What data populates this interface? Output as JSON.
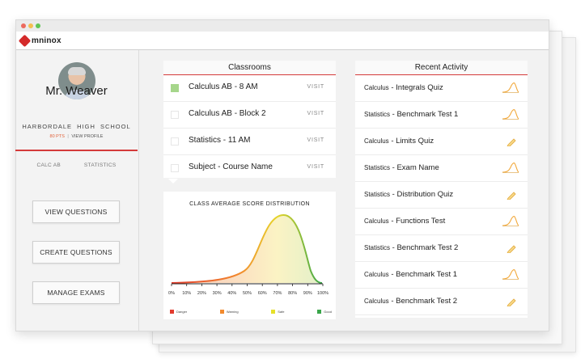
{
  "app": {
    "logo_text": "mninox"
  },
  "sidebar": {
    "teacher_name": "Mr. Weaver",
    "school": "HARBORDALE HIGH SCHOOL",
    "points": "80 PTS",
    "separator": "|",
    "view_profile": "VIEW PROFILE",
    "tabs": [
      "CALC AB",
      "STATISTICS"
    ],
    "buttons": {
      "view_questions": "VIEW QUESTIONS",
      "create_questions": "CREATE QUESTIONS",
      "manage_exams": "MANAGE EXAMS"
    }
  },
  "classrooms": {
    "title": "Classrooms",
    "visit_label": "VISIT",
    "items": [
      {
        "name": "Calculus AB - 8 AM",
        "active": true
      },
      {
        "name": "Calculus AB - Block 2",
        "active": false
      },
      {
        "name": "Statistics - 11 AM",
        "active": false
      },
      {
        "name": "Subject - Course Name",
        "active": false
      }
    ]
  },
  "distribution": {
    "title": "CLASS AVERAGE SCORE DISTRIBUTION",
    "ticks": [
      "0%",
      "10%",
      "20%",
      "30%",
      "40%",
      "50%",
      "60%",
      "70%",
      "80%",
      "90%",
      "100%"
    ],
    "legend": [
      {
        "label": "Danger",
        "color": "#e23b2e"
      },
      {
        "label": "Warning",
        "color": "#f28a2e"
      },
      {
        "label": "Safe",
        "color": "#e6e02a"
      },
      {
        "label": "Good",
        "color": "#3aa64a"
      }
    ]
  },
  "activity": {
    "title": "Recent Activity",
    "items": [
      {
        "subject": "Calculus",
        "name": "Integrals Quiz",
        "icon": "bell-curve-icon"
      },
      {
        "subject": "Statistics",
        "name": "Benchmark Test 1",
        "icon": "bell-curve-icon"
      },
      {
        "subject": "Calculus",
        "name": "Limits Quiz",
        "icon": "pencil-icon"
      },
      {
        "subject": "Statistics",
        "name": "Exam Name",
        "icon": "bell-curve-icon"
      },
      {
        "subject": "Statistics",
        "name": "Distribution Quiz",
        "icon": "pencil-icon"
      },
      {
        "subject": "Calculus",
        "name": "Functions Test",
        "icon": "bell-curve-icon"
      },
      {
        "subject": "Statistics",
        "name": "Benchmark Test 2",
        "icon": "pencil-icon"
      },
      {
        "subject": "Calculus",
        "name": "Benchmark Test 1",
        "icon": "bell-curve-icon"
      },
      {
        "subject": "Calculus",
        "name": "Benchmark Test 2",
        "icon": "pencil-icon"
      }
    ]
  },
  "colors": {
    "accent": "#d43a3a",
    "points": "#e0623a",
    "active_class": "#a6d68b"
  }
}
